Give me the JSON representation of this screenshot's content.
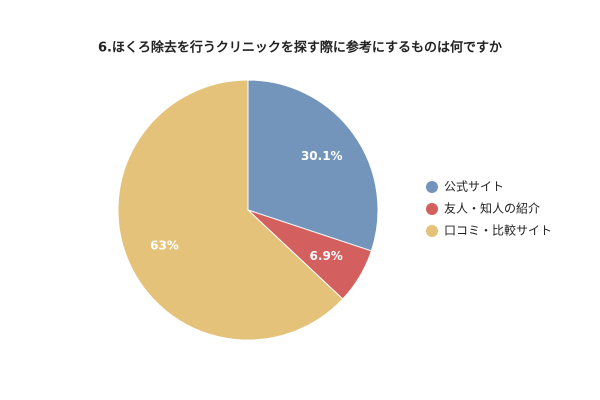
{
  "chart_data": {
    "type": "pie",
    "title": "6.ほくろ除去を行うクリニックを探す際に参考にするものは何ですか",
    "categories": [
      "公式サイト",
      "友人・知人の紹介",
      "口コミ・比較サイト"
    ],
    "values": [
      30.1,
      6.9,
      63
    ],
    "value_labels": [
      "30.1%",
      "6.9%",
      "63%"
    ],
    "colors": [
      "#7395bb",
      "#d45f5f",
      "#e5c27a"
    ],
    "legend": "right"
  }
}
